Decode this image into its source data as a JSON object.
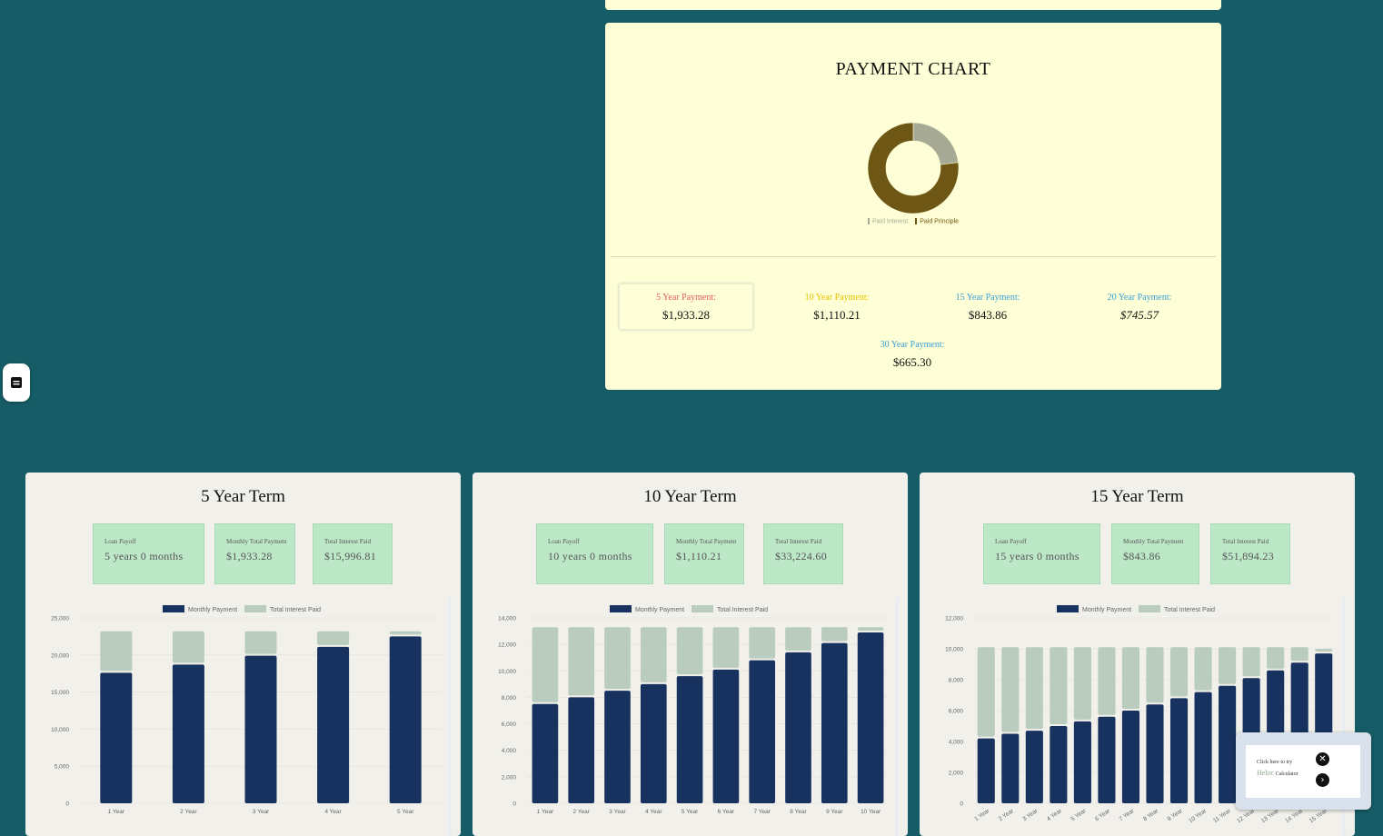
{
  "payment_chart": {
    "title": "PAYMENT CHART",
    "legend": [
      {
        "label": "Paid Interest",
        "color": "#a6aa94"
      },
      {
        "label": "Paid Principle",
        "color": "#6e5614"
      }
    ],
    "chart_data": {
      "type": "pie",
      "categories": [
        "Paid Interest",
        "Paid Principle"
      ],
      "values": [
        23,
        77
      ],
      "colors": [
        "#a6aa94",
        "#6e5614"
      ],
      "title": ""
    },
    "payments": [
      {
        "label": "5 Year Payment:",
        "value": "$1,933.28",
        "color": "#e15a5a"
      },
      {
        "label": "10 Year Payment:",
        "value": "$1,110.21",
        "color": "#e6c200"
      },
      {
        "label": "15 Year Payment:",
        "value": "$843.86",
        "color": "#3a9fd6"
      },
      {
        "label": "20 Year Payment:",
        "value": "$745.57",
        "color": "#3a9fd6"
      },
      {
        "label": "30 Year Payment:",
        "value": "$665.30",
        "color": "#3a9fd6"
      }
    ]
  },
  "side_button": {
    "icon": "document-icon"
  },
  "terms": [
    {
      "title": "5 Year Term",
      "stats": [
        {
          "label": "Loan Payoff",
          "value": "5 years 0 months"
        },
        {
          "label": "Monthly Total Payment",
          "value": "$1,933.28"
        },
        {
          "label": "Total Interest Paid",
          "value": "$15,996.81"
        }
      ]
    },
    {
      "title": "10 Year Term",
      "stats": [
        {
          "label": "Loan Payoff",
          "value": "10 years 0 months"
        },
        {
          "label": "Monthly Total Payment",
          "value": "$1,110.21"
        },
        {
          "label": "Total Interest Paid",
          "value": "$33,224.60"
        }
      ]
    },
    {
      "title": "15 Year Term",
      "stats": [
        {
          "label": "Loan Payoff",
          "value": "15 years 0 months"
        },
        {
          "label": "Monthly Total Payment",
          "value": "$843.86"
        },
        {
          "label": "Total Interest Paid",
          "value": "$51,894.23"
        }
      ]
    }
  ],
  "chart_data": [
    {
      "type": "bar",
      "stacked": true,
      "categories": [
        "1 Year",
        "2 Year",
        "3 Year",
        "4 Year",
        "5 Year"
      ],
      "series": [
        {
          "name": "Monthly Payment",
          "color": "#17325f",
          "values": [
            17600,
            18700,
            19900,
            21100,
            22500
          ]
        },
        {
          "name": "Total Interest Paid",
          "color": "#b9ccbd",
          "values": [
            5600,
            4500,
            3300,
            2100,
            700
          ]
        }
      ],
      "ylim": [
        0,
        25000
      ],
      "yticks": [
        "0",
        "5,000",
        "10,000",
        "15,000",
        "20,000",
        "25,000"
      ],
      "legend_position": "top",
      "title": ""
    },
    {
      "type": "bar",
      "stacked": true,
      "categories": [
        "1 Year",
        "2 Year",
        "3 Year",
        "4 Year",
        "5 Year",
        "6 Year",
        "7 Year",
        "8 Year",
        "9 Year",
        "10 Year"
      ],
      "series": [
        {
          "name": "Monthly Payment",
          "color": "#17325f",
          "values": [
            7500,
            8000,
            8500,
            9000,
            9600,
            10100,
            10800,
            11400,
            12100,
            12900
          ]
        },
        {
          "name": "Total Interest Paid",
          "color": "#b9ccbd",
          "values": [
            5800,
            5300,
            4800,
            4300,
            3700,
            3200,
            2500,
            1900,
            1200,
            400
          ]
        }
      ],
      "ylim": [
        0,
        14000
      ],
      "yticks": [
        "0",
        "2,000",
        "4,000",
        "6,000",
        "8,000",
        "10,000",
        "12,000",
        "14,000"
      ],
      "legend_position": "top",
      "title": ""
    },
    {
      "type": "bar",
      "stacked": true,
      "categories": [
        "1 Year",
        "2 Year",
        "3 Year",
        "4 Year",
        "5 Year",
        "6 Year",
        "7 Year",
        "8 Year",
        "9 Year",
        "10 Year",
        "11 Year",
        "12 Year",
        "13 Year",
        "14 Year",
        "15 Year"
      ],
      "series": [
        {
          "name": "Monthly Payment",
          "color": "#17325f",
          "values": [
            4200,
            4500,
            4700,
            5000,
            5300,
            5600,
            6000,
            6400,
            6800,
            7200,
            7600,
            8100,
            8600,
            9100,
            9700
          ]
        },
        {
          "name": "Total Interest Paid",
          "color": "#b9ccbd",
          "values": [
            5900,
            5600,
            5400,
            5100,
            4800,
            4500,
            4100,
            3700,
            3300,
            2900,
            2500,
            2000,
            1500,
            1000,
            300
          ]
        }
      ],
      "ylim": [
        0,
        12000
      ],
      "yticks": [
        "0",
        "2,000",
        "4,000",
        "6,000",
        "8,000",
        "10,000",
        "12,000"
      ],
      "legend_position": "top",
      "title": ""
    }
  ],
  "popup": {
    "line1": "Click here to try",
    "heloc": "Heloc",
    "calculator": "Calculator",
    "close_icon": "close-icon",
    "go_icon": "chevron-right-icon"
  }
}
